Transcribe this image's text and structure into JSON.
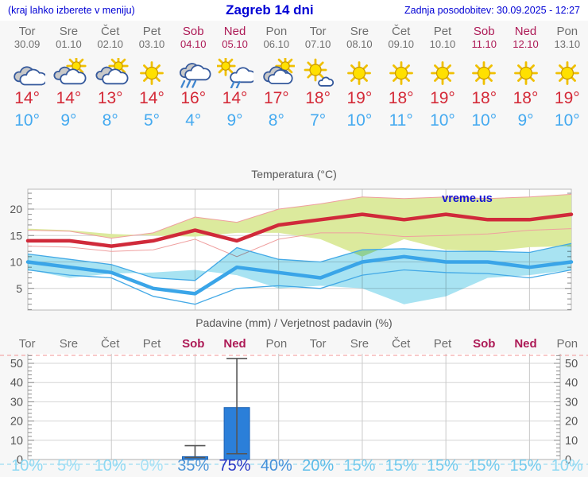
{
  "header": {
    "left": "(kraj lahko izberete v meniju)",
    "title": "Zagreb 14 dni",
    "right": "Zadnja posodobitev: 30.09.2025 - 12:27"
  },
  "degree_symbol": "°",
  "days": [
    {
      "name": "Tor",
      "date": "30.09",
      "weekend": false,
      "icon": "cloudy",
      "tmax": "14",
      "tmin": "10"
    },
    {
      "name": "Sre",
      "date": "01.10",
      "weekend": false,
      "icon": "partly-cloudy",
      "tmax": "14",
      "tmin": "9"
    },
    {
      "name": "Čet",
      "date": "02.10",
      "weekend": false,
      "icon": "partly-cloudy",
      "tmax": "13",
      "tmin": "8"
    },
    {
      "name": "Pet",
      "date": "03.10",
      "weekend": false,
      "icon": "sunny",
      "tmax": "14",
      "tmin": "5"
    },
    {
      "name": "Sob",
      "date": "04.10",
      "weekend": true,
      "icon": "rain",
      "tmax": "16",
      "tmin": "4"
    },
    {
      "name": "Ned",
      "date": "05.10",
      "weekend": true,
      "icon": "sun-rain",
      "tmax": "14",
      "tmin": "9"
    },
    {
      "name": "Pon",
      "date": "06.10",
      "weekend": false,
      "icon": "cloud-sun",
      "tmax": "17",
      "tmin": "8"
    },
    {
      "name": "Tor",
      "date": "07.10",
      "weekend": false,
      "icon": "mostly-sunny",
      "tmax": "18",
      "tmin": "7"
    },
    {
      "name": "Sre",
      "date": "08.10",
      "weekend": false,
      "icon": "sunny",
      "tmax": "19",
      "tmin": "10"
    },
    {
      "name": "Čet",
      "date": "09.10",
      "weekend": false,
      "icon": "sunny",
      "tmax": "18",
      "tmin": "11"
    },
    {
      "name": "Pet",
      "date": "10.10",
      "weekend": false,
      "icon": "sunny",
      "tmax": "19",
      "tmin": "10"
    },
    {
      "name": "Sob",
      "date": "11.10",
      "weekend": true,
      "icon": "sunny",
      "tmax": "18",
      "tmin": "10"
    },
    {
      "name": "Ned",
      "date": "12.10",
      "weekend": true,
      "icon": "sunny",
      "tmax": "18",
      "tmin": "9"
    },
    {
      "name": "Pon",
      "date": "13.10",
      "weekend": false,
      "icon": "sunny",
      "tmax": "19",
      "tmin": "10"
    }
  ],
  "chart_data": [
    {
      "type": "line",
      "title": "Temperatura (°C)",
      "watermark": "vreme.us",
      "x_labels": [
        "Tor 30.09",
        "Sre 01.10",
        "Čet 02.10",
        "Pet 03.10",
        "Sob 04.10",
        "Ned 05.10",
        "Pon 06.10",
        "Tor 07.10",
        "Sre 08.10",
        "Čet 09.10",
        "Pet 10.10",
        "Sob 11.10",
        "Ned 12.10",
        "Pon 13.10"
      ],
      "ylim": [
        0,
        24
      ],
      "yticks": [
        5,
        10,
        15,
        20
      ],
      "grid": true,
      "series": [
        {
          "name": "max-temperature",
          "color": "#d02a3a",
          "values": [
            14,
            14,
            13,
            14,
            16,
            14,
            17,
            18,
            19,
            18,
            19,
            18,
            18,
            19
          ]
        },
        {
          "name": "min-temperature",
          "color": "#3aa5e8",
          "values": [
            10,
            9,
            8,
            5,
            4,
            9,
            8,
            7,
            10,
            11,
            10,
            10,
            9,
            10
          ]
        }
      ],
      "bands": [
        {
          "name": "max-temperature-range",
          "fill": "#dcea9d",
          "edge": "#ef9f9f",
          "upper": [
            16,
            15.8,
            14.5,
            15.5,
            18.5,
            17.5,
            20,
            21,
            22.3,
            22,
            22.3,
            22,
            22.3,
            22.8
          ],
          "lower": [
            13,
            12.8,
            12,
            12.3,
            14.3,
            11,
            14.3,
            15.5,
            15.5,
            14.8,
            15,
            15.3,
            16,
            16.3
          ]
        },
        {
          "name": "min-temperature-range",
          "fill": "#a8e3f2",
          "edge": "#43a9e6",
          "upper": [
            11.5,
            10.5,
            9.5,
            7,
            6.5,
            12.7,
            10.5,
            10,
            12.3,
            12.5,
            12,
            12,
            11.8,
            13.5
          ],
          "lower": [
            8.5,
            7.5,
            7,
            3.5,
            2,
            5,
            5.5,
            5,
            7.5,
            8.5,
            8,
            7.8,
            7,
            8.5
          ]
        }
      ]
    },
    {
      "type": "bar",
      "title": "Padavine (mm) / Verjetnost padavin (%)",
      "categories": [
        "Tor",
        "Sre",
        "Čet",
        "Pet",
        "Sob",
        "Ned",
        "Pon",
        "Tor",
        "Sre",
        "Čet",
        "Pet",
        "Sob",
        "Ned",
        "Pon"
      ],
      "values": [
        0,
        0,
        0,
        0,
        1.5,
        27,
        0,
        0,
        0,
        0,
        0,
        0,
        0,
        0
      ],
      "error_bars": [
        null,
        null,
        null,
        null,
        {
          "lo": 1,
          "hi": 7.2
        },
        {
          "lo": 3,
          "hi": 52.5
        },
        null,
        null,
        null,
        null,
        null,
        null,
        null,
        null
      ],
      "bar_color": "#2b7fd9",
      "ylim": [
        0,
        55
      ],
      "yticks": [
        0,
        10,
        20,
        30,
        40,
        50
      ],
      "grid": true,
      "probabilities": [
        "10%",
        "5%",
        "10%",
        "0%",
        "35%",
        "75%",
        "40%",
        "20%",
        "15%",
        "15%",
        "15%",
        "15%",
        "15%",
        "10%"
      ],
      "prob_colors": [
        "#8ed9f3",
        "#9cdef5",
        "#8ed9f3",
        "#a8e2f6",
        "#4f97d9",
        "#2736c5",
        "#4490da",
        "#5cbce9",
        "#74cbee",
        "#74cbee",
        "#74cbee",
        "#74cbee",
        "#74cbee",
        "#8ed9f3"
      ]
    }
  ]
}
